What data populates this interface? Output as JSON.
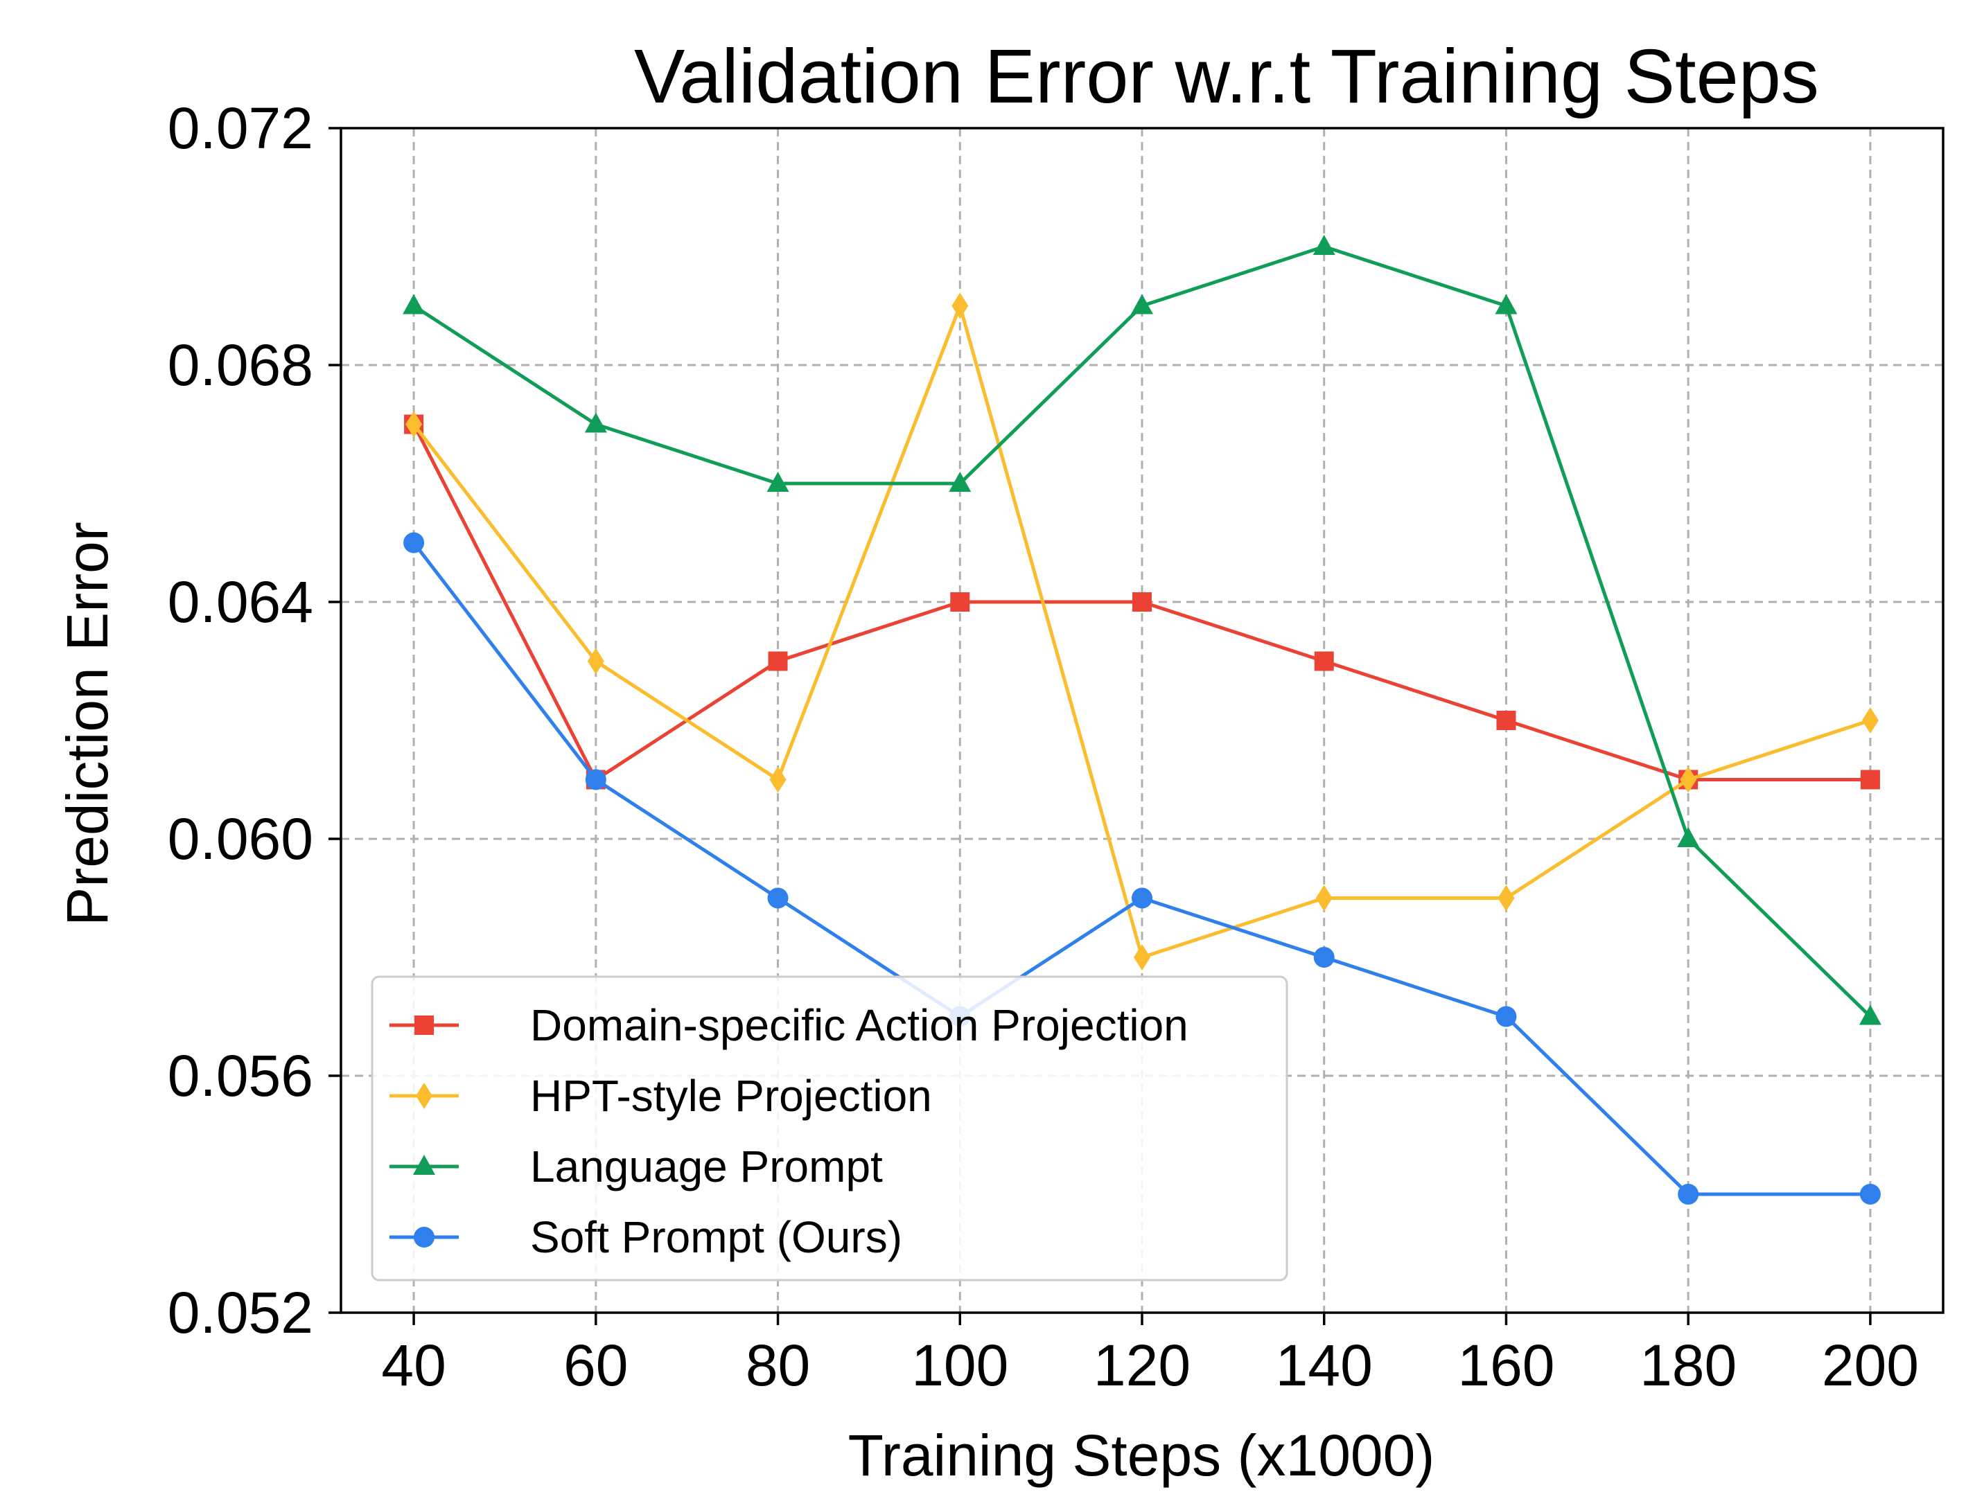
{
  "chart_data": {
    "type": "line",
    "title": "Validation Error w.r.t Training Steps",
    "xlabel": "Training Steps (x1000)",
    "ylabel": "Prediction Error",
    "x": [
      40,
      60,
      80,
      100,
      120,
      140,
      160,
      180,
      200
    ],
    "x_tick_labels": [
      "40",
      "60",
      "80",
      "100",
      "120",
      "140",
      "160",
      "180",
      "200"
    ],
    "xlim": [
      32,
      208
    ],
    "ylim": [
      0.052,
      0.072
    ],
    "y_ticks": [
      0.052,
      0.056,
      0.06,
      0.064,
      0.068,
      0.072
    ],
    "y_tick_labels": [
      "0.052",
      "0.056",
      "0.060",
      "0.064",
      "0.068",
      "0.072"
    ],
    "grid": true,
    "legend_position": "lower-left",
    "series": [
      {
        "name": "Domain-specific Action Projection",
        "color": "#ea4335",
        "marker": "square",
        "values": [
          0.067,
          0.061,
          0.063,
          0.064,
          0.064,
          0.063,
          0.062,
          0.061,
          0.061
        ]
      },
      {
        "name": "HPT-style Projection",
        "color": "#fbbc2e",
        "marker": "diamond",
        "values": [
          0.067,
          0.063,
          0.061,
          0.069,
          0.058,
          0.059,
          0.059,
          0.061,
          0.062
        ]
      },
      {
        "name": "Language Prompt",
        "color": "#0f9d58",
        "marker": "triangle",
        "values": [
          0.069,
          0.067,
          0.066,
          0.066,
          0.069,
          0.07,
          0.069,
          0.06,
          0.057
        ]
      },
      {
        "name": "Soft Prompt (Ours)",
        "color": "#2f80ed",
        "marker": "circle",
        "values": [
          0.065,
          0.061,
          0.059,
          0.057,
          0.059,
          0.058,
          0.057,
          0.054,
          0.054
        ]
      }
    ]
  }
}
